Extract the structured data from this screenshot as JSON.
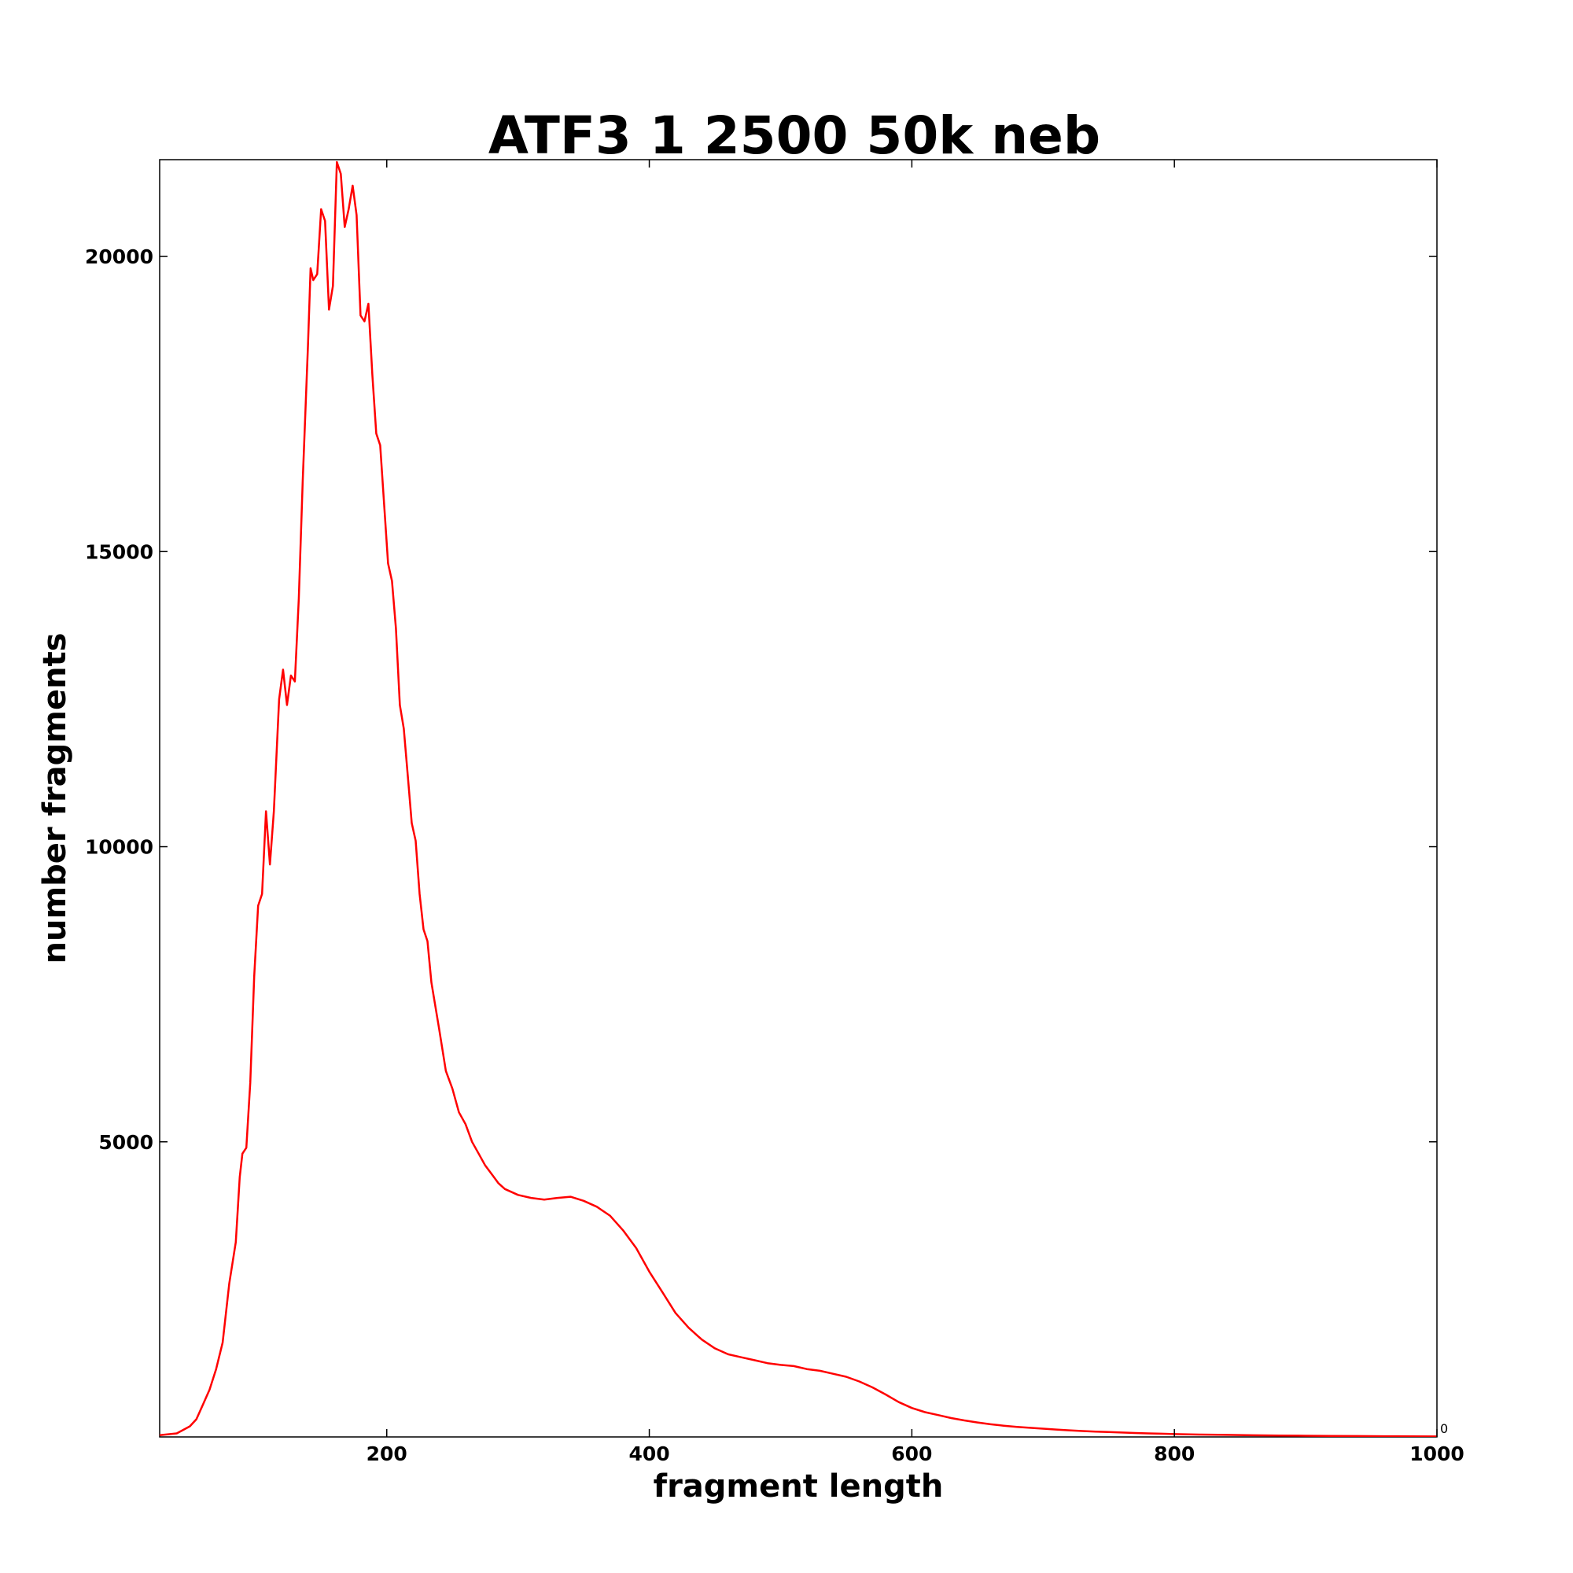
{
  "chart_data": {
    "type": "line",
    "title": "ATF3 1 2500 50k neb",
    "xlabel": "fragment length",
    "ylabel": "number fragments",
    "xlim": [
      27,
      1000
    ],
    "ylim": [
      0,
      21640
    ],
    "xticks": [
      200,
      400,
      600,
      800,
      1000
    ],
    "yticks": [
      5000,
      10000,
      15000,
      20000
    ],
    "corner_label": "0",
    "grid": false,
    "legend": "none",
    "series": [
      {
        "color": "#ff0000",
        "points": [
          [
            27,
            30
          ],
          [
            40,
            60
          ],
          [
            50,
            180
          ],
          [
            55,
            300
          ],
          [
            60,
            550
          ],
          [
            65,
            800
          ],
          [
            70,
            1150
          ],
          [
            75,
            1600
          ],
          [
            80,
            2600
          ],
          [
            85,
            3300
          ],
          [
            88,
            4400
          ],
          [
            90,
            4800
          ],
          [
            93,
            4900
          ],
          [
            96,
            6000
          ],
          [
            99,
            7800
          ],
          [
            102,
            9000
          ],
          [
            105,
            9200
          ],
          [
            108,
            10600
          ],
          [
            111,
            9700
          ],
          [
            114,
            10600
          ],
          [
            118,
            12500
          ],
          [
            121,
            13000
          ],
          [
            124,
            12400
          ],
          [
            127,
            12900
          ],
          [
            130,
            12800
          ],
          [
            133,
            14200
          ],
          [
            136,
            16200
          ],
          [
            140,
            18500
          ],
          [
            142,
            19800
          ],
          [
            144,
            19600
          ],
          [
            147,
            19700
          ],
          [
            150,
            20800
          ],
          [
            153,
            20600
          ],
          [
            156,
            19100
          ],
          [
            159,
            19500
          ],
          [
            162,
            21600
          ],
          [
            165,
            21400
          ],
          [
            168,
            20500
          ],
          [
            171,
            20800
          ],
          [
            174,
            21200
          ],
          [
            177,
            20700
          ],
          [
            180,
            19000
          ],
          [
            183,
            18900
          ],
          [
            186,
            19200
          ],
          [
            189,
            18000
          ],
          [
            192,
            17000
          ],
          [
            195,
            16800
          ],
          [
            198,
            15800
          ],
          [
            201,
            14800
          ],
          [
            204,
            14500
          ],
          [
            207,
            13700
          ],
          [
            210,
            12400
          ],
          [
            213,
            12000
          ],
          [
            216,
            11200
          ],
          [
            219,
            10400
          ],
          [
            222,
            10100
          ],
          [
            225,
            9200
          ],
          [
            228,
            8600
          ],
          [
            231,
            8400
          ],
          [
            234,
            7700
          ],
          [
            237,
            7300
          ],
          [
            240,
            6900
          ],
          [
            245,
            6200
          ],
          [
            250,
            5900
          ],
          [
            255,
            5500
          ],
          [
            260,
            5300
          ],
          [
            265,
            5000
          ],
          [
            270,
            4800
          ],
          [
            275,
            4600
          ],
          [
            280,
            4450
          ],
          [
            285,
            4300
          ],
          [
            290,
            4200
          ],
          [
            300,
            4100
          ],
          [
            310,
            4050
          ],
          [
            320,
            4020
          ],
          [
            330,
            4050
          ],
          [
            340,
            4070
          ],
          [
            350,
            4000
          ],
          [
            360,
            3900
          ],
          [
            370,
            3750
          ],
          [
            380,
            3500
          ],
          [
            390,
            3200
          ],
          [
            400,
            2800
          ],
          [
            410,
            2450
          ],
          [
            420,
            2100
          ],
          [
            430,
            1850
          ],
          [
            440,
            1650
          ],
          [
            450,
            1500
          ],
          [
            460,
            1400
          ],
          [
            470,
            1350
          ],
          [
            480,
            1300
          ],
          [
            490,
            1250
          ],
          [
            500,
            1220
          ],
          [
            510,
            1200
          ],
          [
            520,
            1150
          ],
          [
            530,
            1120
          ],
          [
            540,
            1070
          ],
          [
            550,
            1020
          ],
          [
            560,
            940
          ],
          [
            570,
            840
          ],
          [
            580,
            720
          ],
          [
            590,
            590
          ],
          [
            600,
            490
          ],
          [
            610,
            420
          ],
          [
            620,
            370
          ],
          [
            630,
            320
          ],
          [
            640,
            280
          ],
          [
            650,
            245
          ],
          [
            660,
            215
          ],
          [
            670,
            190
          ],
          [
            680,
            170
          ],
          [
            690,
            155
          ],
          [
            700,
            140
          ],
          [
            710,
            125
          ],
          [
            720,
            112
          ],
          [
            730,
            100
          ],
          [
            740,
            90
          ],
          [
            750,
            82
          ],
          [
            760,
            75
          ],
          [
            770,
            67
          ],
          [
            780,
            60
          ],
          [
            790,
            54
          ],
          [
            800,
            48
          ],
          [
            820,
            40
          ],
          [
            840,
            34
          ],
          [
            860,
            28
          ],
          [
            880,
            24
          ],
          [
            900,
            20
          ],
          [
            920,
            17
          ],
          [
            940,
            14
          ],
          [
            960,
            12
          ],
          [
            980,
            10
          ],
          [
            1000,
            8
          ]
        ]
      }
    ]
  }
}
